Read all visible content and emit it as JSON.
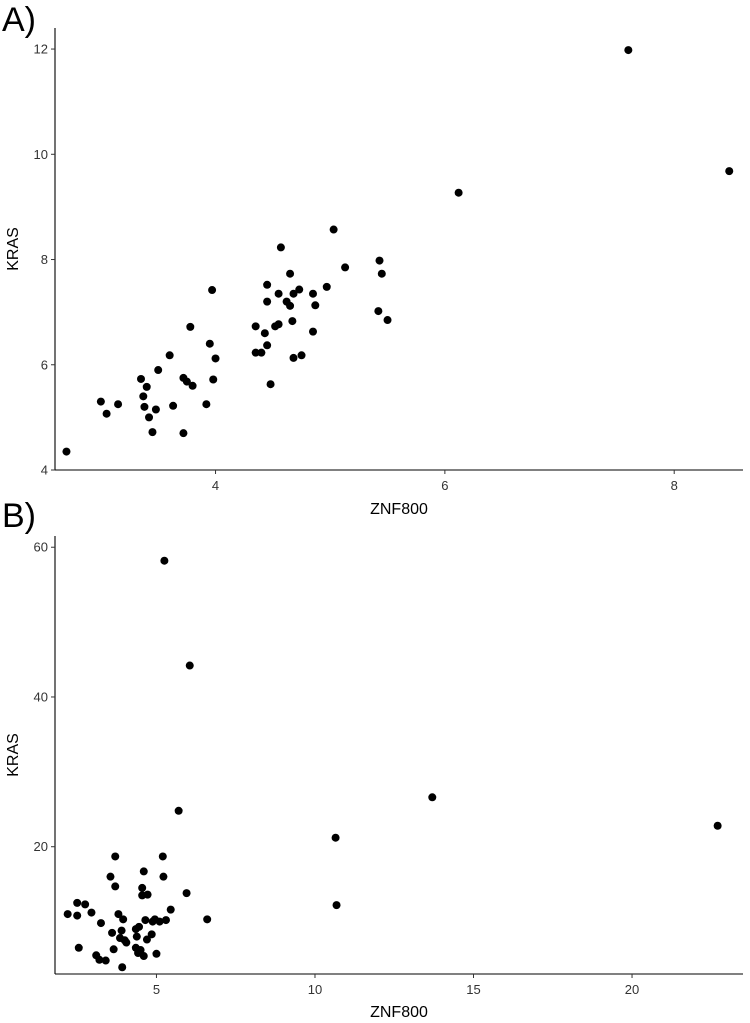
{
  "chart_data": [
    {
      "type": "scatter",
      "panel_label": "A)",
      "xlabel": "ZNF800",
      "ylabel": "KRAS",
      "xlim": [
        2.6,
        8.6
      ],
      "ylim": [
        4.0,
        12.4
      ],
      "xticks": [
        4,
        6,
        8
      ],
      "yticks": [
        4,
        6,
        8,
        10,
        12
      ],
      "grid": false,
      "points": [
        [
          2.7,
          4.35
        ],
        [
          3.0,
          5.3
        ],
        [
          3.05,
          5.07
        ],
        [
          3.15,
          5.25
        ],
        [
          3.35,
          5.73
        ],
        [
          3.37,
          5.4
        ],
        [
          3.38,
          5.2
        ],
        [
          3.4,
          5.58
        ],
        [
          3.42,
          5.0
        ],
        [
          3.45,
          4.72
        ],
        [
          3.48,
          5.15
        ],
        [
          3.5,
          5.9
        ],
        [
          3.6,
          6.18
        ],
        [
          3.63,
          5.22
        ],
        [
          3.72,
          4.7
        ],
        [
          3.72,
          5.75
        ],
        [
          3.75,
          5.68
        ],
        [
          3.78,
          6.72
        ],
        [
          3.8,
          5.6
        ],
        [
          3.92,
          5.25
        ],
        [
          3.95,
          6.4
        ],
        [
          3.97,
          7.42
        ],
        [
          3.98,
          5.72
        ],
        [
          4.0,
          6.12
        ],
        [
          4.35,
          6.73
        ],
        [
          4.35,
          6.23
        ],
        [
          4.4,
          6.23
        ],
        [
          4.43,
          6.6
        ],
        [
          4.45,
          7.52
        ],
        [
          4.45,
          7.2
        ],
        [
          4.45,
          6.37
        ],
        [
          4.48,
          5.63
        ],
        [
          4.52,
          6.73
        ],
        [
          4.55,
          6.77
        ],
        [
          4.55,
          7.35
        ],
        [
          4.57,
          8.23
        ],
        [
          4.62,
          7.2
        ],
        [
          4.65,
          7.73
        ],
        [
          4.65,
          7.12
        ],
        [
          4.67,
          6.83
        ],
        [
          4.68,
          6.13
        ],
        [
          4.68,
          7.35
        ],
        [
          4.73,
          7.43
        ],
        [
          4.75,
          6.18
        ],
        [
          4.85,
          6.63
        ],
        [
          4.85,
          7.35
        ],
        [
          4.87,
          7.13
        ],
        [
          4.97,
          7.48
        ],
        [
          5.03,
          8.57
        ],
        [
          5.13,
          7.85
        ],
        [
          5.42,
          7.02
        ],
        [
          5.43,
          7.98
        ],
        [
          5.45,
          7.73
        ],
        [
          5.5,
          6.85
        ],
        [
          6.12,
          9.27
        ],
        [
          7.6,
          11.98
        ],
        [
          8.48,
          9.68
        ]
      ]
    },
    {
      "type": "scatter",
      "panel_label": "B)",
      "xlabel": "ZNF800",
      "ylabel": "KRAS",
      "xlim": [
        1.8,
        23.5
      ],
      "ylim": [
        3.0,
        61.5
      ],
      "xticks": [
        5,
        10,
        15,
        20
      ],
      "yticks": [
        20,
        40,
        60
      ],
      "grid": false,
      "points": [
        [
          2.2,
          11.0
        ],
        [
          2.5,
          10.8
        ],
        [
          2.5,
          12.5
        ],
        [
          2.55,
          6.5
        ],
        [
          2.75,
          12.3
        ],
        [
          2.95,
          11.2
        ],
        [
          3.1,
          5.5
        ],
        [
          3.2,
          4.9
        ],
        [
          3.25,
          9.8
        ],
        [
          3.4,
          4.8
        ],
        [
          3.55,
          16.0
        ],
        [
          3.6,
          8.5
        ],
        [
          3.65,
          6.3
        ],
        [
          3.7,
          14.7
        ],
        [
          3.7,
          18.7
        ],
        [
          3.8,
          11.0
        ],
        [
          3.85,
          7.8
        ],
        [
          3.9,
          8.8
        ],
        [
          3.92,
          3.9
        ],
        [
          3.95,
          10.3
        ],
        [
          4.0,
          7.5
        ],
        [
          4.05,
          7.2
        ],
        [
          4.35,
          9.0
        ],
        [
          4.35,
          6.5
        ],
        [
          4.38,
          8.0
        ],
        [
          4.42,
          5.8
        ],
        [
          4.45,
          9.3
        ],
        [
          4.5,
          6.2
        ],
        [
          4.55,
          14.5
        ],
        [
          4.55,
          13.5
        ],
        [
          4.6,
          16.7
        ],
        [
          4.6,
          5.4
        ],
        [
          4.65,
          10.2
        ],
        [
          4.7,
          7.6
        ],
        [
          4.72,
          13.6
        ],
        [
          4.85,
          8.3
        ],
        [
          4.88,
          10.0
        ],
        [
          4.95,
          10.3
        ],
        [
          5.0,
          5.7
        ],
        [
          5.1,
          10.0
        ],
        [
          5.2,
          18.7
        ],
        [
          5.22,
          16.0
        ],
        [
          5.25,
          58.2
        ],
        [
          5.3,
          10.2
        ],
        [
          5.45,
          11.6
        ],
        [
          5.7,
          24.8
        ],
        [
          5.95,
          13.8
        ],
        [
          6.05,
          44.2
        ],
        [
          6.6,
          10.3
        ],
        [
          10.65,
          21.2
        ],
        [
          10.68,
          12.2
        ],
        [
          13.7,
          26.6
        ],
        [
          22.7,
          22.8
        ]
      ]
    }
  ]
}
